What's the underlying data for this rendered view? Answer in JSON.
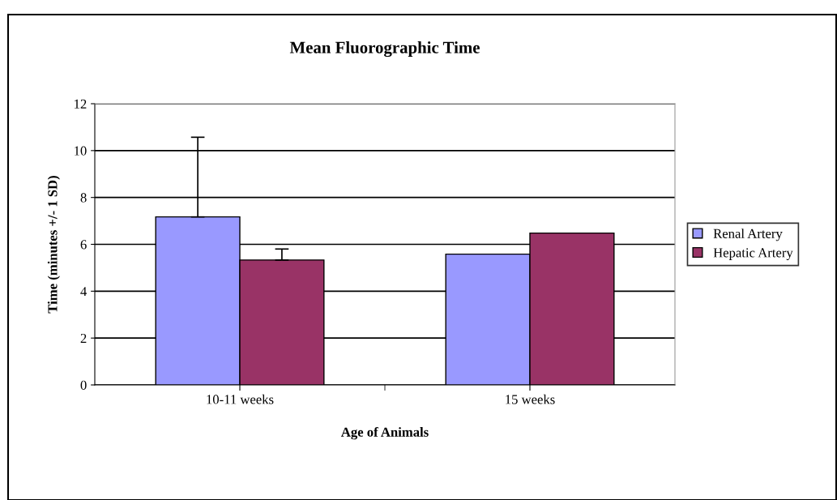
{
  "chart_data": {
    "type": "bar",
    "title": "Mean Fluorographic Time",
    "xlabel": "Age of Animals",
    "ylabel": "Time (minutes +/- 1 SD)",
    "categories": [
      "10-11 weeks",
      "15 weeks"
    ],
    "series": [
      {
        "name": "Renal Artery",
        "color": "#9999ff",
        "values": [
          7.17,
          5.58
        ],
        "errors": [
          [
            7.17,
            10.57
          ],
          null
        ]
      },
      {
        "name": "Hepatic Artery",
        "color": "#993366",
        "values": [
          5.33,
          6.48
        ],
        "errors": [
          [
            5.33,
            5.8
          ],
          null
        ]
      }
    ],
    "ylim": [
      0,
      12
    ],
    "yticks": [
      0,
      2,
      4,
      6,
      8,
      10,
      12
    ],
    "grid": "y",
    "legend": "right"
  }
}
